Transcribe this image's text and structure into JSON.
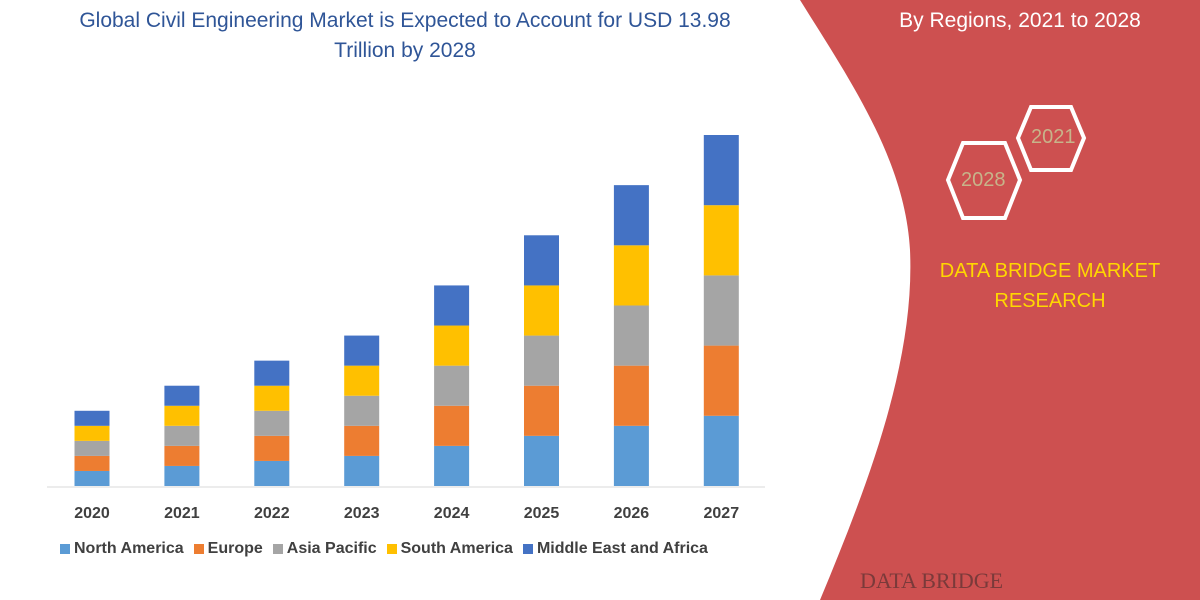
{
  "title": "Global Civil Engineering Market is Expected to Account for USD 13.98 Trillion by 2028",
  "side_panel": {
    "title": "By Regions, 2021 to 2028",
    "hex_labels": [
      "2021",
      "2028"
    ],
    "brand": "DATA BRIDGE MARKET RESEARCH",
    "footer_logo": "DATA BRIDGE",
    "color": "#cd5050"
  },
  "chart_data": {
    "type": "bar",
    "stacked": true,
    "categories": [
      "2020",
      "2021",
      "2022",
      "2023",
      "2024",
      "2025",
      "2026",
      "2027"
    ],
    "series": [
      {
        "name": "North America",
        "color": "#5b9bd5",
        "values": [
          15,
          20,
          25,
          30,
          40,
          50,
          60,
          70
        ]
      },
      {
        "name": "Europe",
        "color": "#ed7d31",
        "values": [
          15,
          20,
          25,
          30,
          40,
          50,
          60,
          70
        ]
      },
      {
        "name": "Asia Pacific",
        "color": "#a5a5a5",
        "values": [
          15,
          20,
          25,
          30,
          40,
          50,
          60,
          70
        ]
      },
      {
        "name": "South America",
        "color": "#ffc000",
        "values": [
          15,
          20,
          25,
          30,
          40,
          50,
          60,
          70
        ]
      },
      {
        "name": "Middle East and Africa",
        "color": "#4472c4",
        "values": [
          15,
          20,
          25,
          30,
          40,
          50,
          60,
          70
        ]
      }
    ],
    "y_axis_visible": false,
    "grid": false,
    "legend_position": "bottom"
  }
}
